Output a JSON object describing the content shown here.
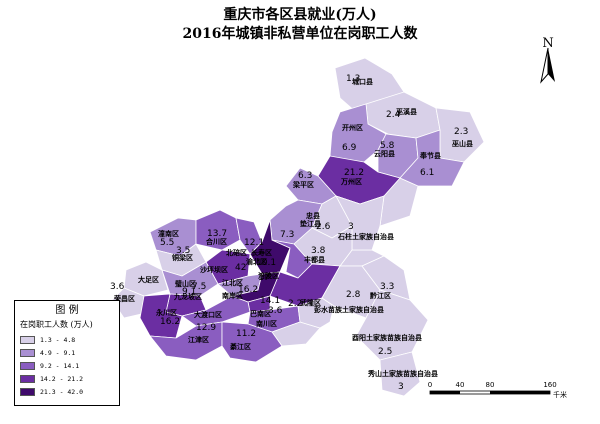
{
  "title": {
    "line1": "重庆市各区县就业(万人)",
    "line2": "2016年城镇非私营单位在岗职工人数"
  },
  "legend": {
    "title": "图 例",
    "subtitle": "在岗职工人数 (万人)",
    "classes": [
      {
        "label": "1.3 - 4.8",
        "color": "#d8d0e8"
      },
      {
        "label": "4.9 - 9.1",
        "color": "#a98fd2"
      },
      {
        "label": "9.2 - 14.1",
        "color": "#8a5dc0"
      },
      {
        "label": "14.2 - 21.2",
        "color": "#6b2ea2"
      },
      {
        "label": "21.3 - 42.0",
        "color": "#3f0a6b"
      }
    ]
  },
  "north": {
    "label": "N",
    "icon": "north-arrow-icon"
  },
  "scale": {
    "ticks": [
      "0",
      "40",
      "80",
      "160"
    ],
    "unit": "千米"
  },
  "districts": [
    {
      "name": "城口县",
      "value": "1.3",
      "cls": 0
    },
    {
      "name": "巫溪县",
      "value": "2.4",
      "cls": 0
    },
    {
      "name": "巫山县",
      "value": "2.3",
      "cls": 0
    },
    {
      "name": "开州区",
      "value": "6.9",
      "cls": 1
    },
    {
      "name": "云阳县",
      "value": "5.8",
      "cls": 1
    },
    {
      "name": "奉节县",
      "value": "6.1",
      "cls": 1
    },
    {
      "name": "万州区",
      "value": "21.2",
      "cls": 3
    },
    {
      "name": "梁平区",
      "value": "6.3",
      "cls": 1
    },
    {
      "name": "垫江县",
      "value": "7.3",
      "cls": 1
    },
    {
      "name": "忠县",
      "value": "2.6",
      "cls": 0
    },
    {
      "name": "石柱土家族自治县",
      "value": "3",
      "cls": 0
    },
    {
      "name": "丰都县",
      "value": "3.8",
      "cls": 0
    },
    {
      "name": "潼南区",
      "value": "5.5",
      "cls": 1
    },
    {
      "name": "合川区",
      "value": "13.7",
      "cls": 2
    },
    {
      "name": "北碚区",
      "value": "12.1",
      "cls": 2
    },
    {
      "name": "铜梁区",
      "value": "3.5",
      "cls": 0
    },
    {
      "name": "渝北区",
      "value": "42",
      "cls": 4
    },
    {
      "name": "长寿区",
      "value": "10.1",
      "cls": 2
    },
    {
      "name": "涪陵区",
      "value": "17",
      "cls": 3
    },
    {
      "name": "沙坪坝区",
      "value": "",
      "cls": 3
    },
    {
      "name": "大足区",
      "value": "3.6",
      "cls": 0
    },
    {
      "name": "璧山区",
      "value": "9.1",
      "cls": 1
    },
    {
      "name": "江北区",
      "value": "7.5",
      "cls": 1
    },
    {
      "name": "渝中区",
      "value": "",
      "cls": 4
    },
    {
      "name": "南岸区",
      "value": "16.2",
      "cls": 3
    },
    {
      "name": "荣昌区",
      "value": "",
      "cls": 0
    },
    {
      "name": "九龙坡区",
      "value": "",
      "cls": 3
    },
    {
      "name": "巴南区",
      "value": "14.1",
      "cls": 2
    },
    {
      "name": "永川区",
      "value": "16.2",
      "cls": 3
    },
    {
      "name": "大渡口区",
      "value": "",
      "cls": 2
    },
    {
      "name": "南川区",
      "value": "3.6",
      "cls": 0
    },
    {
      "name": "江津区",
      "value": "12.9",
      "cls": 2
    },
    {
      "name": "綦江区",
      "value": "11.2",
      "cls": 2
    },
    {
      "name": "武隆区",
      "value": "2.2",
      "cls": 0
    },
    {
      "name": "彭水苗族土家族自治县",
      "value": "2.8",
      "cls": 0
    },
    {
      "name": "黔江区",
      "value": "3.3",
      "cls": 0
    },
    {
      "name": "酉阳土家族苗族自治县",
      "value": "2.5",
      "cls": 0
    },
    {
      "name": "秀山土家族苗族自治县",
      "value": "3",
      "cls": 0
    }
  ]
}
